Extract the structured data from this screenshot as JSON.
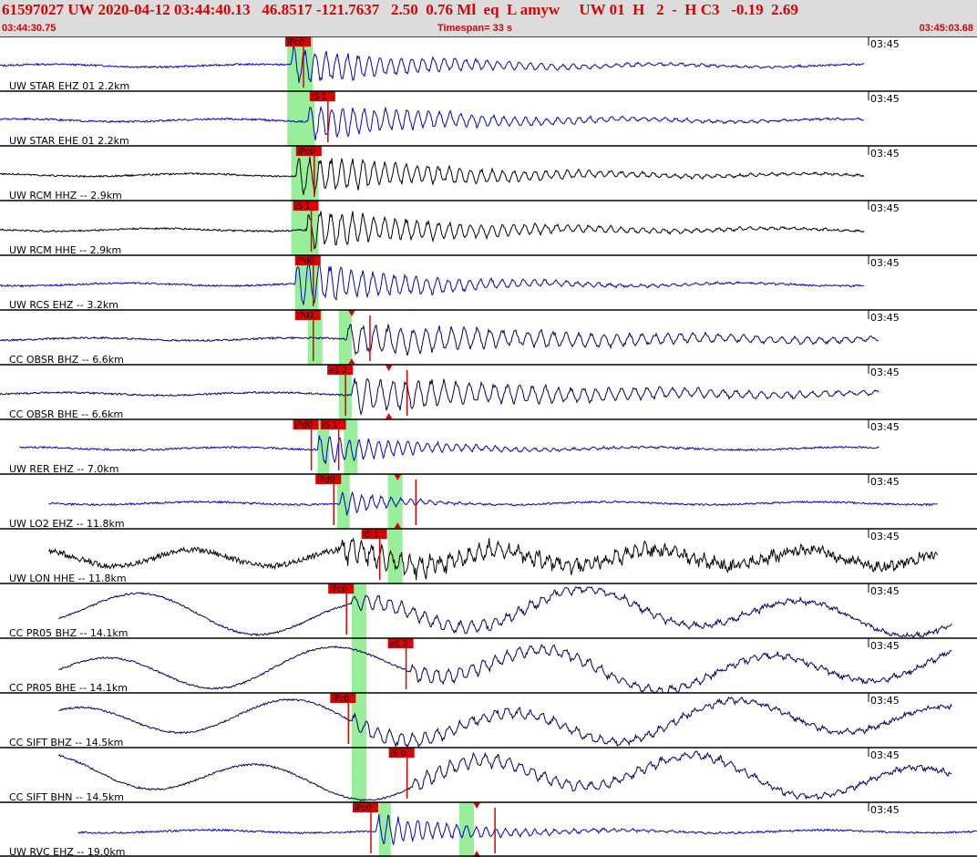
{
  "header": {
    "line": "61597027 UW 2020-04-12 03:44:40.13   46.8517 -121.7637   2.50  0.76 Ml  eq  L amyw     UW 01  H   2  -  H C3   -0.19  2.69",
    "start_time": "03:44:30.75",
    "timespan": "Timespan=  33 s",
    "end_time": "03:45:03.68"
  },
  "colors": {
    "red": "#dd0000",
    "green": "#99ee99",
    "blue": "#0000cc",
    "black": "#000000",
    "navy": "#000066"
  },
  "traces": [
    {
      "label": "UW STAR EHZ 01 2.2km",
      "time": "03:45",
      "color": "blue",
      "start": 0.0,
      "end": 0.885,
      "onset": 0.298,
      "amp": 21,
      "decay": 0.15,
      "period": 0.011,
      "style": "quake",
      "picks": [
        {
          "t": 0.292,
          "label": "iPc0",
          "green": [
            0.294,
            0.32
          ]
        }
      ]
    },
    {
      "label": "UW STAR EHE 01 2.2km",
      "time": "03:45",
      "color": "blue",
      "start": 0.0,
      "end": 0.885,
      "onset": 0.315,
      "amp": 22,
      "decay": 0.15,
      "period": 0.011,
      "style": "quake",
      "picks": [
        {
          "t": 0.317,
          "label": "iS 1",
          "green": [
            0.294,
            0.322
          ]
        }
      ]
    },
    {
      "label": "UW RCM HHZ -- 2.9km",
      "time": "03:45",
      "color": "black",
      "start": 0.0,
      "end": 0.885,
      "onset": 0.303,
      "amp": 24,
      "decay": 0.17,
      "period": 0.011,
      "style": "quake",
      "picks": [
        {
          "t": 0.303,
          "label": "iPc0",
          "green": [
            0.298,
            0.326
          ]
        }
      ]
    },
    {
      "label": "UW RCM HHE -- 2.9km",
      "time": "03:45",
      "color": "black",
      "start": 0.0,
      "end": 0.885,
      "onset": 0.314,
      "amp": 22,
      "decay": 0.17,
      "period": 0.011,
      "style": "quake",
      "picks": [
        {
          "t": 0.3,
          "label": "iS 1",
          "green": [
            0.298,
            0.326
          ]
        }
      ]
    },
    {
      "label": "UW RCS EHZ -- 3.2km",
      "time": "03:45",
      "color": "blue",
      "start": 0.0,
      "end": 0.885,
      "onset": 0.302,
      "amp": 26,
      "decay": 0.13,
      "period": 0.011,
      "style": "quake",
      "picks": [
        {
          "t": 0.302,
          "label": "iPd0",
          "green": [
            0.302,
            0.326
          ]
        }
      ]
    },
    {
      "label": "CC OBSR BHZ -- 6.6km",
      "time": "03:45",
      "color": "navy",
      "start": 0.0,
      "end": 0.9,
      "onset": 0.355,
      "amp": 19,
      "decay": 0.28,
      "period": 0.013,
      "style": "quake",
      "picks": [
        {
          "t": 0.302,
          "label": "iPd1",
          "green": [
            0.315,
            0.33
          ]
        },
        {
          "t": 0.36,
          "label": "",
          "green": [
            0.347,
            0.36
          ]
        }
      ]
    },
    {
      "label": "CC OBSR BHE -- 6.6km",
      "time": "03:45",
      "color": "navy",
      "start": 0.0,
      "end": 0.9,
      "onset": 0.36,
      "amp": 20,
      "decay": 0.26,
      "period": 0.013,
      "style": "quake",
      "picks": [
        {
          "t": 0.335,
          "label": "eS 2",
          "green": [
            0.347,
            0.36
          ]
        },
        {
          "t": 0.398,
          "label": "",
          "green": null
        }
      ]
    },
    {
      "label": "UW RER EHZ -- 7.0km",
      "time": "03:45",
      "color": "blue",
      "start": 0.02,
      "end": 0.9,
      "onset": 0.325,
      "amp": 18,
      "decay": 0.1,
      "period": 0.01,
      "style": "quake",
      "picks": [
        {
          "t": 0.3,
          "label": "iPd0",
          "green": [
            0.325,
            0.337
          ]
        },
        {
          "t": 0.328,
          "label": "iS 1",
          "green": [
            0.352,
            0.366
          ]
        }
      ]
    },
    {
      "label": "UW LO2 EHZ -- 11.8km",
      "time": "03:45",
      "color": "blue",
      "start": 0.05,
      "end": 0.96,
      "onset": 0.348,
      "amp": 15,
      "decay": 0.05,
      "period": 0.01,
      "style": "quake",
      "picks": [
        {
          "t": 0.323,
          "label": "iPd0",
          "green": [
            0.345,
            0.358
          ]
        },
        {
          "t": 0.407,
          "label": "",
          "green": [
            0.397,
            0.412
          ]
        }
      ]
    },
    {
      "label": "UW LON HHE -- 11.8km",
      "time": "03:45",
      "color": "black",
      "start": 0.05,
      "end": 0.96,
      "onset": 0.348,
      "amp": 12,
      "decay": 0.3,
      "period": 0.01,
      "style": "noisy",
      "picks": [
        {
          "t": 0.37,
          "label": "iS 1",
          "green": [
            0.397,
            0.412
          ]
        }
      ]
    },
    {
      "label": "CC PR05 BHZ -- 14.1km",
      "time": "03:45",
      "color": "navy",
      "start": 0.06,
      "end": 0.975,
      "onset": 0.36,
      "amp": 10,
      "decay": 0.3,
      "period": 0.012,
      "style": "long",
      "picks": [
        {
          "t": 0.336,
          "label": "iPc0",
          "green": [
            0.36,
            0.375
          ]
        }
      ]
    },
    {
      "label": "CC PR05 BHE -- 14.1km",
      "time": "03:45",
      "color": "navy",
      "start": 0.06,
      "end": 0.975,
      "onset": 0.42,
      "amp": 10,
      "decay": 0.3,
      "period": 0.012,
      "style": "long",
      "picks": [
        {
          "t": 0.397,
          "label": "eS 2",
          "green": [
            0.36,
            0.375
          ]
        }
      ]
    },
    {
      "label": "CC SIFT BHZ -- 14.5km",
      "time": "03:45",
      "color": "navy",
      "start": 0.06,
      "end": 0.975,
      "onset": 0.36,
      "amp": 10,
      "decay": 0.3,
      "period": 0.012,
      "style": "long",
      "picks": [
        {
          "t": 0.338,
          "label": "iPc0",
          "green": [
            0.36,
            0.375
          ]
        }
      ]
    },
    {
      "label": "CC SIFT BHN -- 14.5km",
      "time": "03:45",
      "color": "navy",
      "start": 0.06,
      "end": 0.975,
      "onset": 0.422,
      "amp": 10,
      "decay": 0.3,
      "period": 0.012,
      "style": "long",
      "picks": [
        {
          "t": 0.398,
          "label": "iS 0",
          "green": [
            0.36,
            0.375
          ]
        }
      ]
    },
    {
      "label": "UW RVC EHZ -- 19.0km",
      "time": "03:45",
      "color": "blue",
      "start": 0.08,
      "end": 1.0,
      "onset": 0.385,
      "amp": 18,
      "decay": 0.1,
      "period": 0.01,
      "style": "quake",
      "picks": [
        {
          "t": 0.361,
          "label": "iPc0",
          "green": [
            0.388,
            0.4
          ]
        },
        {
          "t": 0.488,
          "label": "",
          "green": [
            0.47,
            0.485
          ]
        }
      ]
    }
  ]
}
